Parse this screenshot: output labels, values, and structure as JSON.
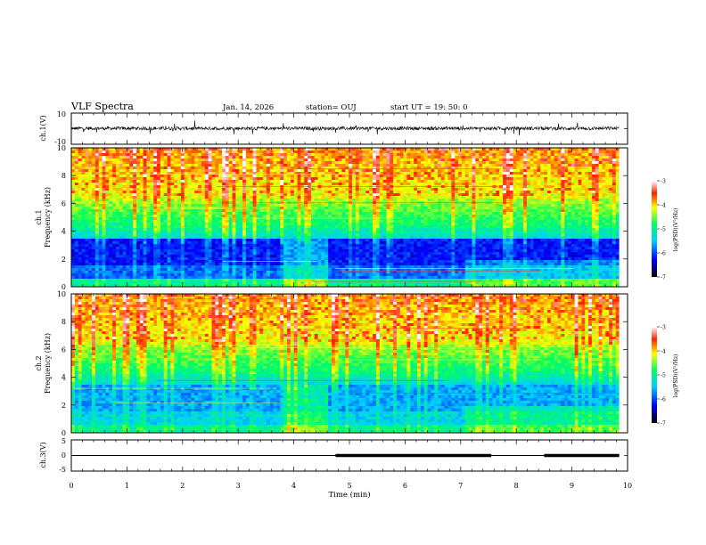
{
  "header": {
    "title": "VLF Spectra",
    "date": "Jan. 14, 2026",
    "station": "station= OUJ",
    "start": "start  UT =   19: 50: 0"
  },
  "chart_data": [
    {
      "type": "line",
      "name": "ch1-waveform",
      "ylabel": "ch.1(V)",
      "ylim": [
        -10,
        10
      ],
      "yticks": [
        "10",
        "-10"
      ],
      "xlim": [
        0,
        10
      ],
      "baseline": 0.2
    },
    {
      "type": "heatmap",
      "name": "ch1-spectrogram",
      "ylabel_top": "ch.1",
      "ylabel": "Frequency (kHz)",
      "ylim": [
        0,
        10
      ],
      "yticks": [
        "0",
        "2",
        "4",
        "6",
        "8",
        "10"
      ],
      "xlim": [
        0,
        10
      ],
      "colorbar": {
        "label": "log(PSD)(V²/Hz)",
        "range": [
          -7,
          -3
        ],
        "ticks": [
          "-3",
          "-4",
          "-5",
          "-6",
          "-7"
        ]
      }
    },
    {
      "type": "heatmap",
      "name": "ch2-spectrogram",
      "ylabel_top": "ch.2",
      "ylabel": "Frequency (kHz)",
      "ylim": [
        0,
        10
      ],
      "yticks": [
        "0",
        "2",
        "4",
        "6",
        "8",
        "10"
      ],
      "xlim": [
        0,
        10
      ],
      "colorbar": {
        "label": "log(PSD)(V²/Hz)",
        "range": [
          -7,
          -3
        ],
        "ticks": [
          "-3",
          "-4",
          "-5",
          "-6",
          "-7"
        ]
      }
    },
    {
      "type": "line",
      "name": "ch3-status",
      "ylabel": "ch.3(V)",
      "ylim": [
        -5,
        5
      ],
      "yticks": [
        "5",
        "0",
        "-5"
      ],
      "xlim": [
        0,
        10
      ],
      "xlabel": "Time (min)",
      "xticks": [
        "0",
        "1",
        "2",
        "3",
        "4",
        "5",
        "6",
        "7",
        "8",
        "9",
        "10"
      ],
      "level_value": 0,
      "thick_segments": [
        [
          4.75,
          7.55
        ],
        [
          8.5,
          9.85
        ]
      ]
    }
  ],
  "colors": {
    "background": "#ffffff",
    "trace": "#000000",
    "colormap": [
      "#00007f",
      "#0000ff",
      "#00ffff",
      "#00ff00",
      "#ffff00",
      "#ff0000",
      "#7f0000"
    ]
  }
}
